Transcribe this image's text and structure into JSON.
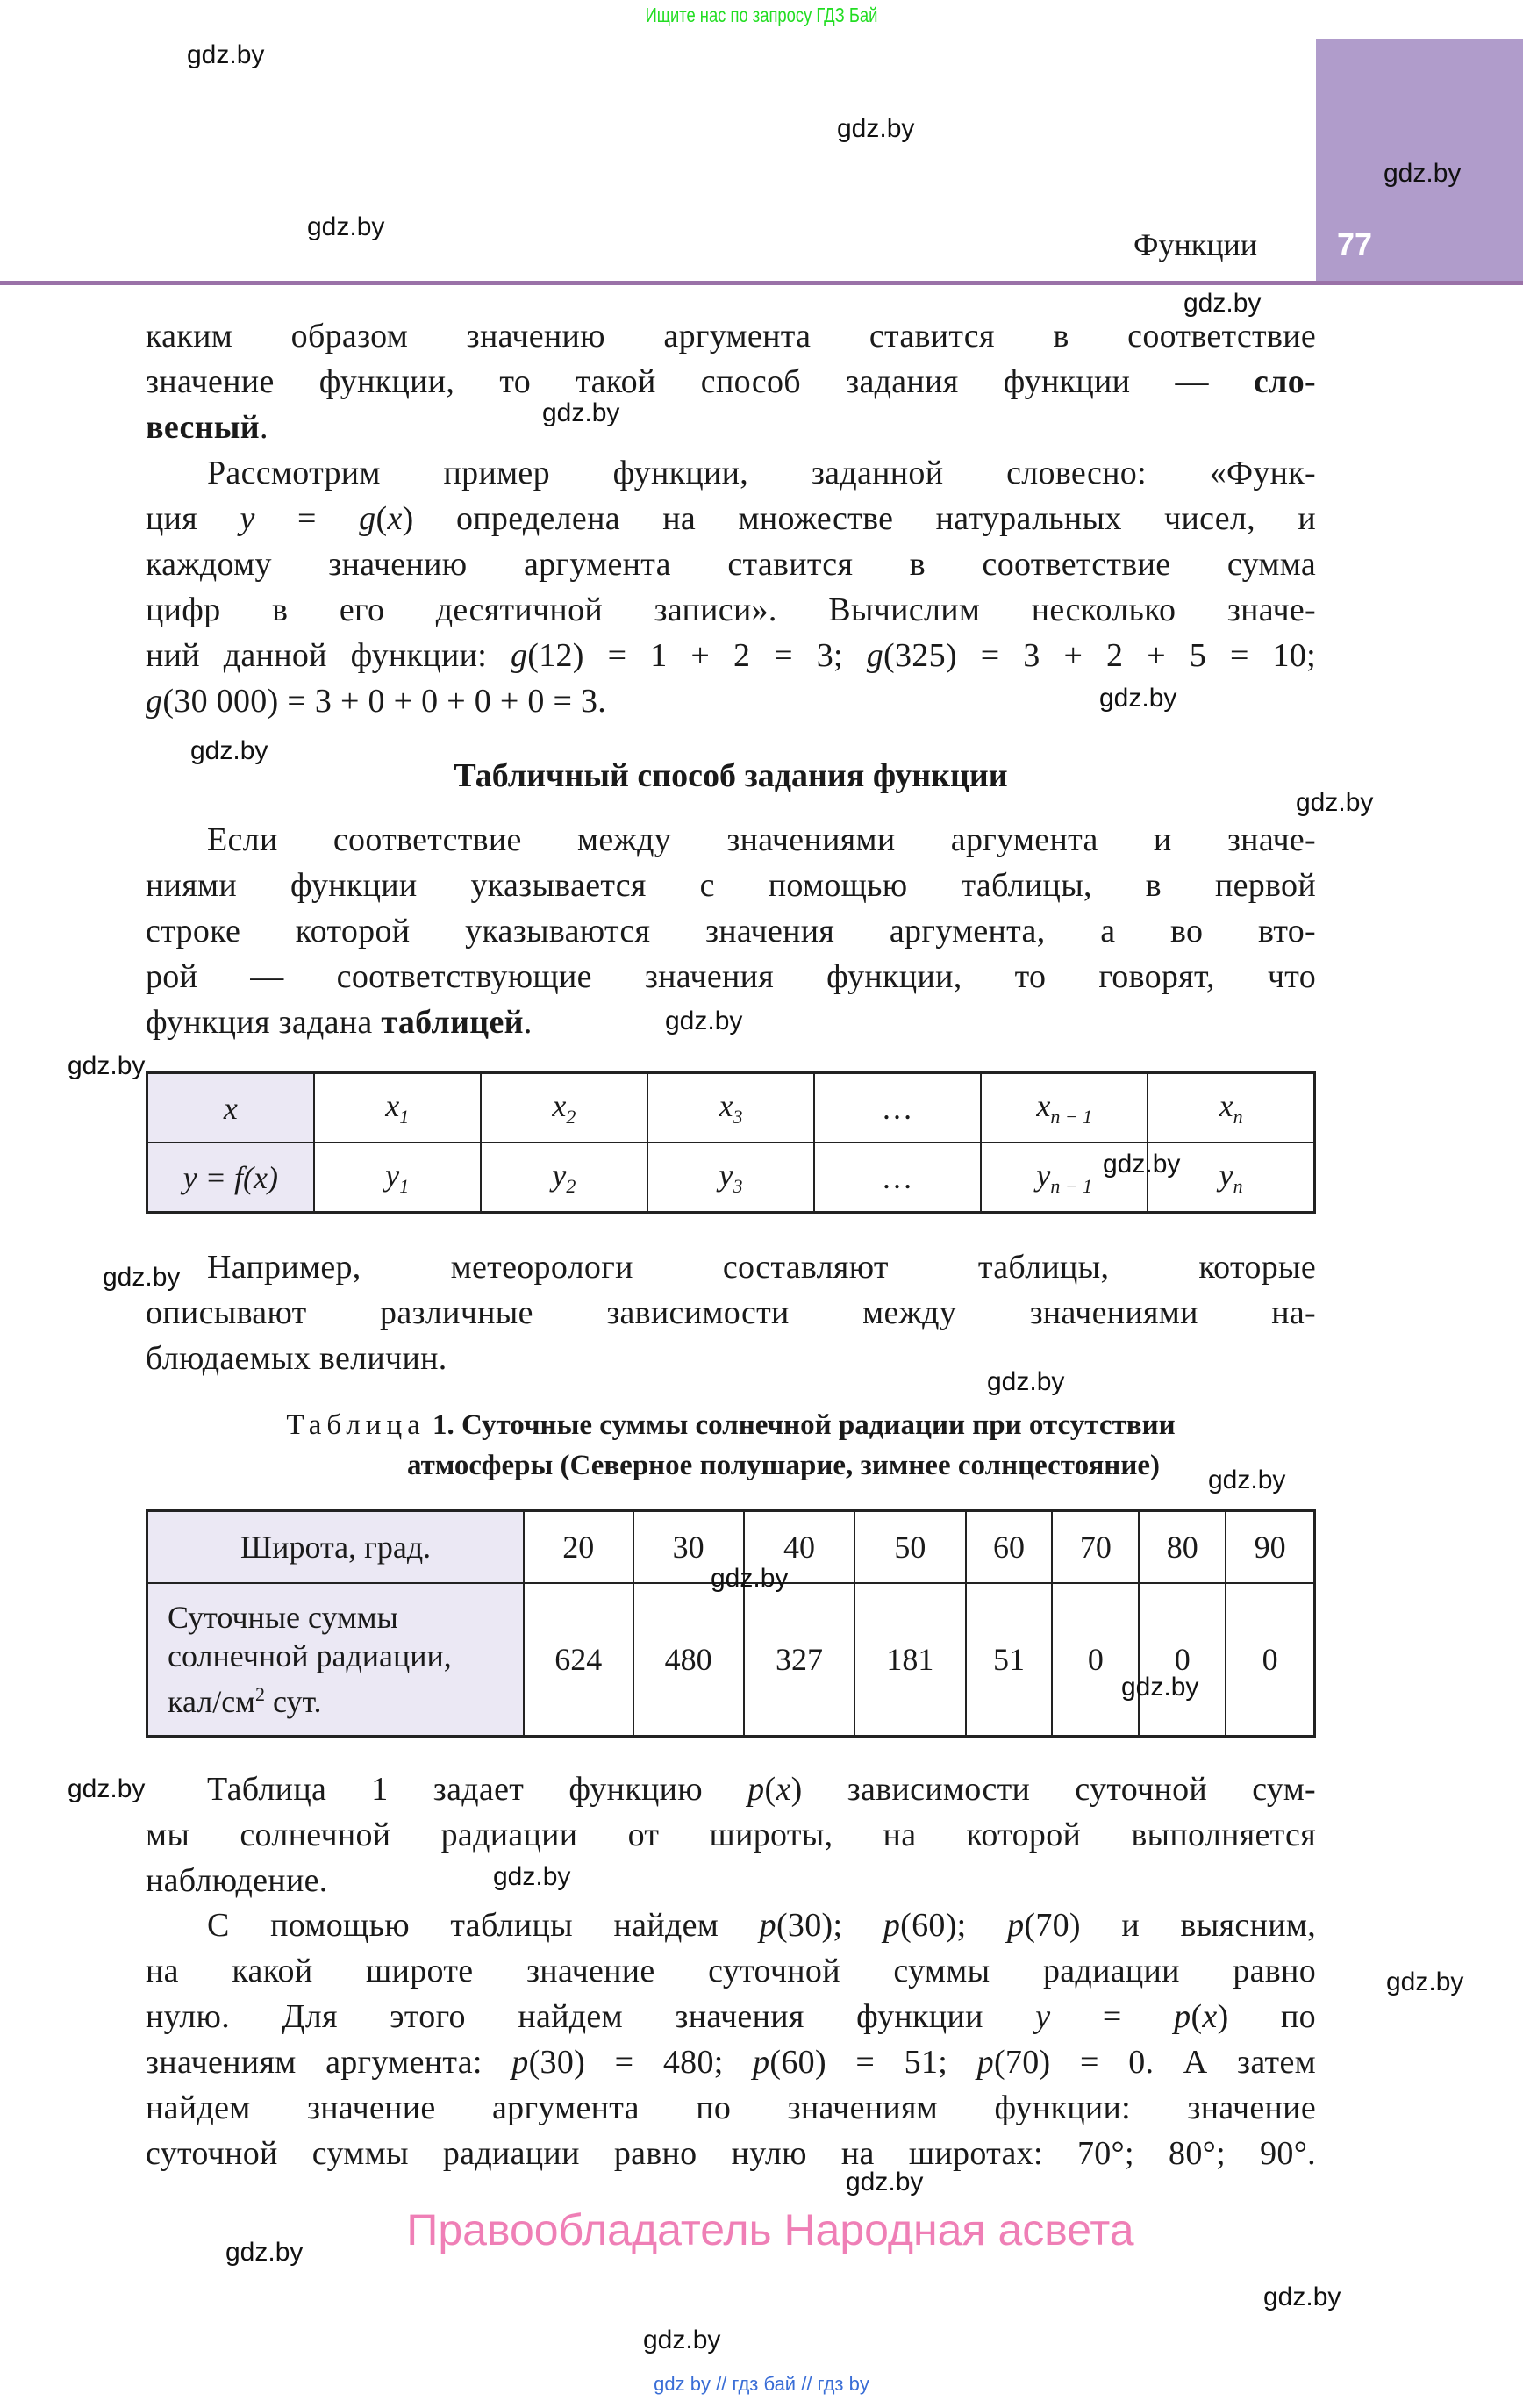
{
  "top_note": "Ищите нас по запросу ГДЗ Бай",
  "header": {
    "section": "Функции",
    "page_number": "77",
    "tab_color": "#b09ccb",
    "rule_color": "#9a72a8"
  },
  "paragraphs": {
    "p1": [
      [
        {
          "t": "каким образом значению аргумента ставится в соответствие"
        }
      ],
      [
        {
          "t": "значение функции, то такой способ задания функции — "
        },
        {
          "t": "сло-",
          "s": "b"
        }
      ],
      [
        {
          "t": "весный",
          "s": "b"
        },
        {
          "t": "."
        }
      ]
    ],
    "p2": [
      [
        {
          "t": "Рассмотрим пример функции, заданной словесно: «Функ-"
        }
      ],
      [
        {
          "t": "ция "
        },
        {
          "t": "y",
          "s": "i"
        },
        {
          "t": " = "
        },
        {
          "t": "g",
          "s": "i"
        },
        {
          "t": "("
        },
        {
          "t": "x",
          "s": "i"
        },
        {
          "t": ") определена на множестве натуральных чисел, и"
        }
      ],
      [
        {
          "t": "каждому значению аргумента ставится в соответствие сумма"
        }
      ],
      [
        {
          "t": "цифр в его десятичной записи». Вычислим несколько значе-"
        }
      ],
      [
        {
          "t": "ний данной функции: "
        },
        {
          "t": "g",
          "s": "i"
        },
        {
          "t": "(12) = 1 + 2 = 3; "
        },
        {
          "t": "g",
          "s": "i"
        },
        {
          "t": "(325) = 3 + 2 + 5 = 10;"
        }
      ],
      [
        {
          "t": "g",
          "s": "i"
        },
        {
          "t": "(30 000) = 3 + 0 + 0 + 0 + 0 = 3."
        }
      ]
    ],
    "heading": "Табличный способ задания функции",
    "p3": [
      [
        {
          "t": "Если соответствие между значениями аргумента и значе-"
        }
      ],
      [
        {
          "t": "ниями функции указывается с помощью таблицы, в первой"
        }
      ],
      [
        {
          "t": "строке которой указываются значения аргумента, а во вто-"
        }
      ],
      [
        {
          "t": "рой — соответствующие значения функции, то говорят, что"
        }
      ],
      [
        {
          "t": "функция задана "
        },
        {
          "t": "таблицей",
          "s": "b"
        },
        {
          "t": "."
        }
      ]
    ],
    "p4": [
      [
        {
          "t": "Например, метеорологи составляют таблицы, которые"
        }
      ],
      [
        {
          "t": "описывают различные зависимости между значениями на-"
        }
      ],
      [
        {
          "t": "блюдаемых величин."
        }
      ]
    ],
    "p5": [
      [
        {
          "t": "Таблица 1 задает функцию "
        },
        {
          "t": "p",
          "s": "i"
        },
        {
          "t": "("
        },
        {
          "t": "x",
          "s": "i"
        },
        {
          "t": ") зависимости суточной сум-"
        }
      ],
      [
        {
          "t": "мы солнечной радиации от широты, на которой выполняется"
        }
      ],
      [
        {
          "t": "наблюдение."
        }
      ]
    ],
    "p6": [
      [
        {
          "t": "С помощью таблицы найдем "
        },
        {
          "t": "p",
          "s": "i"
        },
        {
          "t": "(30); "
        },
        {
          "t": "p",
          "s": "i"
        },
        {
          "t": "(60); "
        },
        {
          "t": "p",
          "s": "i"
        },
        {
          "t": "(70) и выясним,"
        }
      ],
      [
        {
          "t": "на какой широте значение суточной суммы радиации равно"
        }
      ],
      [
        {
          "t": "нулю. Для этого найдем значения функции "
        },
        {
          "t": "y",
          "s": "i"
        },
        {
          "t": " = "
        },
        {
          "t": "p",
          "s": "i"
        },
        {
          "t": "("
        },
        {
          "t": "x",
          "s": "i"
        },
        {
          "t": ") по"
        }
      ],
      [
        {
          "t": "значениям аргумента: "
        },
        {
          "t": "p",
          "s": "i"
        },
        {
          "t": "(30) = 480; "
        },
        {
          "t": "p",
          "s": "i"
        },
        {
          "t": "(60) = 51; "
        },
        {
          "t": "p",
          "s": "i"
        },
        {
          "t": "(70) = 0. А затем"
        }
      ],
      [
        {
          "t": "найдем значение аргумента по значениям функции: значение"
        }
      ],
      [
        {
          "t": "суточной суммы радиации равно нулю на широтах: 70°; 80°; 90°."
        }
      ]
    ]
  },
  "generic_table": {
    "row1": [
      {
        "b": "x",
        "s": ""
      },
      {
        "b": "x",
        "s": "1"
      },
      {
        "b": "x",
        "s": "2"
      },
      {
        "b": "x",
        "s": "3"
      },
      {
        "b": "…",
        "s": ""
      },
      {
        "b": "x",
        "s": "n − 1"
      },
      {
        "b": "x",
        "s": "n"
      }
    ],
    "row2": [
      {
        "b": "y = f(x)",
        "s": ""
      },
      {
        "b": "y",
        "s": "1"
      },
      {
        "b": "y",
        "s": "2"
      },
      {
        "b": "y",
        "s": "3"
      },
      {
        "b": "…",
        "s": ""
      },
      {
        "b": "y",
        "s": "n − 1"
      },
      {
        "b": "y",
        "s": "n"
      }
    ]
  },
  "caption": {
    "label": "Таблица",
    "line1": "1. Суточные суммы солнечной радиации при отсутствии",
    "line2": "атмосферы (Северное полушарие, зимнее солнцестояние)"
  },
  "radiation_table": {
    "row1_header": "Широта, град.",
    "row2_header_lines": [
      "Суточные суммы",
      "солнечной радиации,",
      "кал/см",
      "2",
      " сут."
    ],
    "latitudes": [
      "20",
      "30",
      "40",
      "50",
      "60",
      "70",
      "80",
      "90"
    ],
    "values": [
      "624",
      "480",
      "327",
      "181",
      "51",
      "0",
      "0",
      "0"
    ]
  },
  "copyright": "Правообладатель Народная асвета",
  "footer": "gdz by  //  гдз бай  //  гдз by",
  "watermark": "gdz.by"
}
